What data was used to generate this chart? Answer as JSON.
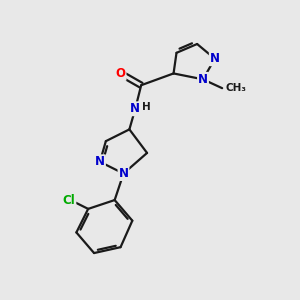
{
  "background_color": "#e8e8e8",
  "bond_color": "#1a1a1a",
  "bond_width": 1.6,
  "atom_colors": {
    "N": "#0000cc",
    "O": "#ff0000",
    "Cl": "#00aa00",
    "C": "#1a1a1a",
    "H": "#1a1a1a"
  },
  "font_size": 8.5,
  "figsize": [
    3.0,
    3.0
  ],
  "dpi": 100
}
